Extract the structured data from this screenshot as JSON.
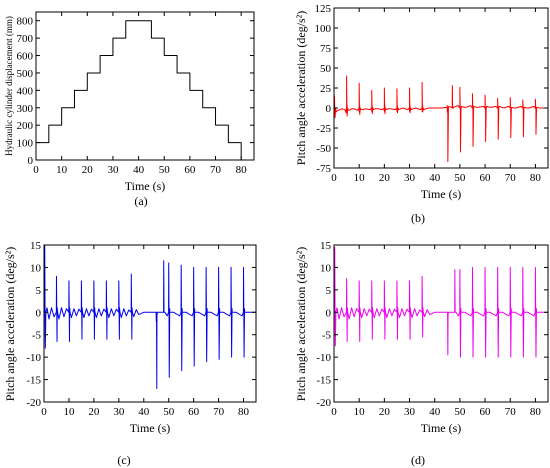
{
  "chart_data": [
    {
      "id": "a",
      "panel_label": "(a)",
      "type": "line",
      "xlabel": "Time  (s)",
      "ylabel": "Hydraulic cylinder displacement  (mm)",
      "xlim": [
        0,
        85
      ],
      "ylim": [
        0,
        850
      ],
      "xticks": [
        0,
        10,
        20,
        30,
        40,
        50,
        60,
        70,
        80
      ],
      "yticks": [
        0,
        100,
        200,
        300,
        400,
        500,
        600,
        700,
        800
      ],
      "color": "#000000",
      "series": [
        {
          "x": [
            0,
            5,
            5,
            10,
            10,
            15,
            15,
            20,
            20,
            25,
            25,
            30,
            30,
            35,
            35,
            45,
            45,
            50,
            50,
            55,
            55,
            60,
            60,
            65,
            65,
            70,
            70,
            75,
            75,
            80,
            80,
            85
          ],
          "values": [
            100,
            100,
            200,
            200,
            300,
            300,
            400,
            400,
            500,
            500,
            600,
            600,
            700,
            700,
            800,
            800,
            700,
            700,
            600,
            600,
            500,
            500,
            400,
            400,
            300,
            300,
            200,
            200,
            100,
            100,
            0,
            0
          ]
        }
      ]
    },
    {
      "id": "b",
      "panel_label": "(b)",
      "type": "line",
      "xlabel": "Time  (s)",
      "ylabel": "Pitch angle acceleration  (deg/s²)",
      "xlim": [
        0,
        85
      ],
      "ylim": [
        -75,
        125
      ],
      "xticks": [
        0,
        10,
        20,
        30,
        40,
        50,
        60,
        70,
        80
      ],
      "yticks": [
        -75,
        -50,
        -25,
        0,
        25,
        50,
        75,
        100,
        125
      ],
      "color": "#ff0000",
      "base_x": [
        0,
        0.3,
        0.8,
        1.5,
        2.5,
        3.2,
        4.3,
        4.8,
        5,
        5.2,
        5.5,
        6,
        7,
        8,
        9.3,
        10,
        10.2,
        10.6,
        11.5,
        12.5,
        14.3,
        15,
        15.2,
        15.6,
        16.5,
        17.5,
        19.3,
        20,
        20.2,
        20.6,
        21.5,
        22.5,
        24.3,
        25,
        25.2,
        25.6,
        26.5,
        27.5,
        29.3,
        30,
        30.2,
        30.6,
        31.5,
        32.5,
        34.3,
        35,
        35.2,
        35.6,
        36.5,
        37.5,
        43,
        44.5,
        45,
        45.2,
        45.6,
        46.5,
        47.5,
        49.3,
        50,
        50.2,
        50.6,
        51.5,
        52.5,
        54.3,
        55,
        55.2,
        55.6,
        56.5,
        57.5,
        59.3,
        60,
        60.2,
        60.6,
        61.5,
        62.5,
        64.3,
        65,
        65.2,
        65.6,
        66.5,
        67.5,
        69.3,
        70,
        70.2,
        70.6,
        71.5,
        72.5,
        74.3,
        75,
        75.2,
        75.6,
        76.5,
        77.5,
        79.3,
        80,
        80.2,
        80.6,
        81.5,
        82.5,
        85
      ],
      "base_y": [
        0,
        -3,
        -5,
        -3,
        -2,
        -1,
        -2,
        -6,
        -3,
        4,
        -2,
        -3,
        -1,
        -1,
        -3,
        -5,
        3,
        -2,
        -2,
        -1,
        -2,
        -4,
        3,
        -2,
        -1,
        -1,
        -2,
        -4,
        3,
        -2,
        -1,
        -1,
        -2,
        -4,
        3,
        -2,
        -1,
        0,
        -2,
        -4,
        3,
        -2,
        -1,
        0,
        -2,
        -4,
        3,
        -2,
        -1,
        0,
        0,
        1,
        3,
        -3,
        2,
        1,
        1,
        3,
        5,
        -3,
        2,
        1,
        1,
        3,
        4,
        -3,
        2,
        1,
        1,
        2,
        4,
        -3,
        2,
        1,
        1,
        2,
        4,
        -2,
        2,
        1,
        0,
        2,
        4,
        -2,
        1,
        0,
        0,
        2,
        3,
        -2,
        1,
        0,
        0,
        2,
        3,
        -2,
        1,
        0,
        0,
        0
      ],
      "spikes": [
        {
          "t": 0.2,
          "pos": 15,
          "neg": -12
        },
        {
          "t": 5,
          "pos": 40,
          "neg": -10
        },
        {
          "t": 10,
          "pos": 31,
          "neg": -8
        },
        {
          "t": 15,
          "pos": 22,
          "neg": -7
        },
        {
          "t": 20,
          "pos": 25,
          "neg": -7
        },
        {
          "t": 25,
          "pos": 24,
          "neg": -6
        },
        {
          "t": 30,
          "pos": 25,
          "neg": -6
        },
        {
          "t": 35,
          "pos": 32,
          "neg": -5
        },
        {
          "t": 45,
          "pos": -5,
          "neg": -67
        },
        {
          "t": 47,
          "pos": 28,
          "neg": 0
        },
        {
          "t": 50,
          "pos": 26,
          "neg": -55
        },
        {
          "t": 55,
          "pos": 18,
          "neg": -48
        },
        {
          "t": 60,
          "pos": 16,
          "neg": -42
        },
        {
          "t": 65,
          "pos": 12,
          "neg": -39
        },
        {
          "t": 70,
          "pos": 13,
          "neg": -37
        },
        {
          "t": 75,
          "pos": 10,
          "neg": -36
        },
        {
          "t": 80,
          "pos": 11,
          "neg": -33
        }
      ]
    },
    {
      "id": "c",
      "panel_label": "(c)",
      "type": "line",
      "xlabel": "Time  (s)",
      "ylabel": "Pitch angle acceleration  (deg/s²)",
      "xlim": [
        0,
        85
      ],
      "ylim": [
        -20,
        15
      ],
      "xticks": [
        0,
        10,
        20,
        30,
        40,
        50,
        60,
        70,
        80
      ],
      "yticks": [
        -20,
        -15,
        -10,
        -5,
        0,
        5,
        10,
        15
      ],
      "color": "#0000ee",
      "base_x": [
        0,
        1.2,
        2,
        3,
        4,
        5.3,
        6,
        7,
        8,
        9,
        10.3,
        11,
        12,
        13,
        14,
        15.3,
        16,
        17,
        18,
        19,
        20.3,
        21,
        22,
        23,
        24,
        25.3,
        26,
        27,
        28,
        29,
        30.3,
        31,
        32,
        33,
        34,
        35.3,
        36,
        37,
        38,
        40,
        44.5,
        45.3,
        47,
        49.4,
        50.4,
        52,
        54.4,
        55.4,
        57,
        59.4,
        60.4,
        62,
        64.4,
        65.4,
        67,
        69.4,
        70.4,
        72,
        74.4,
        75.4,
        77,
        79.4,
        80.4,
        82,
        85
      ],
      "base_y": [
        0,
        1,
        -1.5,
        1,
        -1,
        1,
        -1.5,
        1,
        -1,
        0.8,
        1,
        -1.2,
        0.8,
        -0.8,
        0.7,
        1,
        -1.2,
        0.8,
        -0.8,
        0.7,
        1,
        -1.2,
        0.8,
        -0.8,
        0.7,
        1,
        -1.2,
        0.8,
        -0.8,
        0.7,
        1,
        -1.2,
        0.8,
        -0.8,
        0.5,
        1,
        -1,
        0.6,
        -0.5,
        0,
        0,
        -0.8,
        0,
        -0.8,
        0.8,
        0,
        -0.8,
        0.8,
        0,
        -0.8,
        0.8,
        0,
        -0.8,
        0.8,
        0,
        -0.8,
        0.8,
        0,
        -0.8,
        0.8,
        0,
        -0.8,
        0.8,
        0,
        0
      ],
      "spikes": [
        {
          "t": 0.3,
          "pos": 15,
          "neg": -8
        },
        {
          "t": 5,
          "pos": 8,
          "neg": -6.5
        },
        {
          "t": 10,
          "pos": 7,
          "neg": -6.5
        },
        {
          "t": 15,
          "pos": 7,
          "neg": -6
        },
        {
          "t": 20,
          "pos": 7,
          "neg": -6
        },
        {
          "t": 25,
          "pos": 7,
          "neg": -6
        },
        {
          "t": 30,
          "pos": 7,
          "neg": -6
        },
        {
          "t": 35,
          "pos": 8.5,
          "neg": -6
        },
        {
          "t": 45,
          "pos": -2,
          "neg": -17
        },
        {
          "t": 48,
          "pos": 11.5,
          "neg": 0
        },
        {
          "t": 50,
          "pos": 11,
          "neg": -14.5
        },
        {
          "t": 55,
          "pos": 10.5,
          "neg": -13
        },
        {
          "t": 60,
          "pos": 10,
          "neg": -12
        },
        {
          "t": 65,
          "pos": 10,
          "neg": -11
        },
        {
          "t": 70,
          "pos": 10,
          "neg": -10.5
        },
        {
          "t": 75,
          "pos": 10,
          "neg": -10
        },
        {
          "t": 80,
          "pos": 10,
          "neg": -10
        }
      ]
    },
    {
      "id": "d",
      "panel_label": "(d)",
      "type": "line",
      "xlabel": "Time  (s)",
      "ylabel": "Pitch angle acceleration  (deg/s²)",
      "xlim": [
        0,
        85
      ],
      "ylim": [
        -20,
        15
      ],
      "xticks": [
        0,
        10,
        20,
        30,
        40,
        50,
        60,
        70,
        80
      ],
      "yticks": [
        -20,
        -15,
        -10,
        -5,
        0,
        5,
        10,
        15
      ],
      "color": "#ee00ee",
      "base_x": [
        0,
        1.2,
        2,
        3,
        4,
        5.3,
        6,
        7,
        8,
        9,
        10.3,
        11,
        12,
        13,
        14,
        15.3,
        16,
        17,
        18,
        19,
        20.3,
        21,
        22,
        23,
        24,
        25.3,
        26,
        27,
        28,
        29,
        30.3,
        31,
        32,
        33,
        34,
        35.3,
        36,
        37,
        38,
        40,
        44.5,
        45.3,
        47,
        49.4,
        50.4,
        52,
        54.4,
        55.4,
        57,
        59.4,
        60.4,
        62,
        64.4,
        65.4,
        67,
        69.4,
        70.4,
        72,
        74.4,
        75.4,
        77,
        79.4,
        80.4,
        82,
        85
      ],
      "base_y": [
        0,
        1,
        -1.5,
        1,
        -1,
        1,
        -1.5,
        1,
        -1,
        0.8,
        1,
        -1.2,
        0.8,
        -0.8,
        0.7,
        1,
        -1.2,
        0.8,
        -0.8,
        0.7,
        1,
        -1.2,
        0.8,
        -0.8,
        0.7,
        1,
        -1.2,
        0.8,
        -0.8,
        0.7,
        1,
        -1.2,
        0.8,
        -0.8,
        0.5,
        1,
        -1,
        0.6,
        -0.5,
        0,
        0,
        -0.6,
        0,
        -0.8,
        0.8,
        0,
        -0.8,
        0.8,
        0,
        -0.8,
        0.8,
        0,
        -0.8,
        0.8,
        0,
        -0.8,
        0.8,
        0,
        -0.8,
        0.8,
        0,
        -0.8,
        0.8,
        0,
        0
      ],
      "spikes": [
        {
          "t": 0.3,
          "pos": 14.5,
          "neg": -7.5
        },
        {
          "t": 5,
          "pos": 7.5,
          "neg": -6.5
        },
        {
          "t": 10,
          "pos": 7,
          "neg": -6.5
        },
        {
          "t": 15,
          "pos": 7,
          "neg": -6
        },
        {
          "t": 20,
          "pos": 7,
          "neg": -6
        },
        {
          "t": 25,
          "pos": 7,
          "neg": -6
        },
        {
          "t": 30,
          "pos": 7,
          "neg": -6
        },
        {
          "t": 35,
          "pos": 8,
          "neg": -5.5
        },
        {
          "t": 45,
          "pos": 0,
          "neg": -9.5
        },
        {
          "t": 48,
          "pos": 9.5,
          "neg": 0
        },
        {
          "t": 50,
          "pos": 9.5,
          "neg": -10
        },
        {
          "t": 55,
          "pos": 10,
          "neg": -10
        },
        {
          "t": 60,
          "pos": 10,
          "neg": -10
        },
        {
          "t": 65,
          "pos": 10,
          "neg": -10
        },
        {
          "t": 70,
          "pos": 10,
          "neg": -10
        },
        {
          "t": 75,
          "pos": 10,
          "neg": -10
        },
        {
          "t": 80,
          "pos": 10,
          "neg": -10
        }
      ]
    }
  ]
}
